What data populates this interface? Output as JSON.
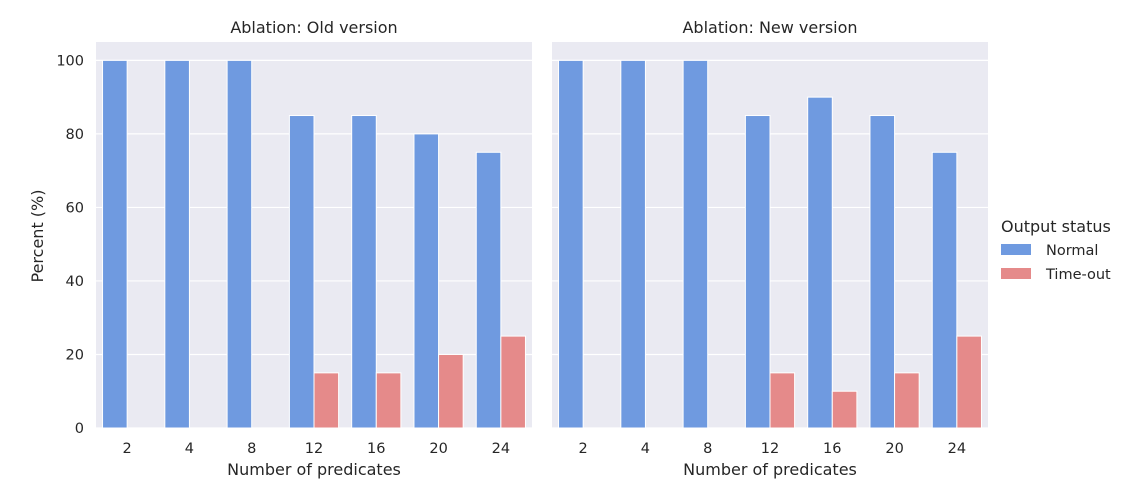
{
  "chart_data": {
    "type": "bar",
    "ylabel": "Percent (%)",
    "xlabel": "Number of predicates",
    "ylim": [
      0,
      105
    ],
    "yticks": [
      0,
      20,
      40,
      60,
      80,
      100
    ],
    "categories": [
      "2",
      "4",
      "8",
      "12",
      "16",
      "20",
      "24"
    ],
    "grid": true,
    "legend": {
      "title": "Output status",
      "placement": "right",
      "entries": [
        "Normal",
        "Time-out"
      ]
    },
    "colors": {
      "Normal": "#6f9ae0",
      "Time-out": "#e58a8a"
    },
    "panels": [
      {
        "title": "Ablation: Old version",
        "series": [
          {
            "name": "Normal",
            "values": [
              100,
              100,
              100,
              85,
              85,
              80,
              75
            ]
          },
          {
            "name": "Time-out",
            "values": [
              0,
              0,
              0,
              15,
              15,
              20,
              25
            ]
          }
        ]
      },
      {
        "title": "Ablation: New version",
        "series": [
          {
            "name": "Normal",
            "values": [
              100,
              100,
              100,
              85,
              90,
              85,
              75
            ]
          },
          {
            "name": "Time-out",
            "values": [
              0,
              0,
              0,
              15,
              10,
              15,
              25
            ]
          }
        ]
      }
    ]
  }
}
